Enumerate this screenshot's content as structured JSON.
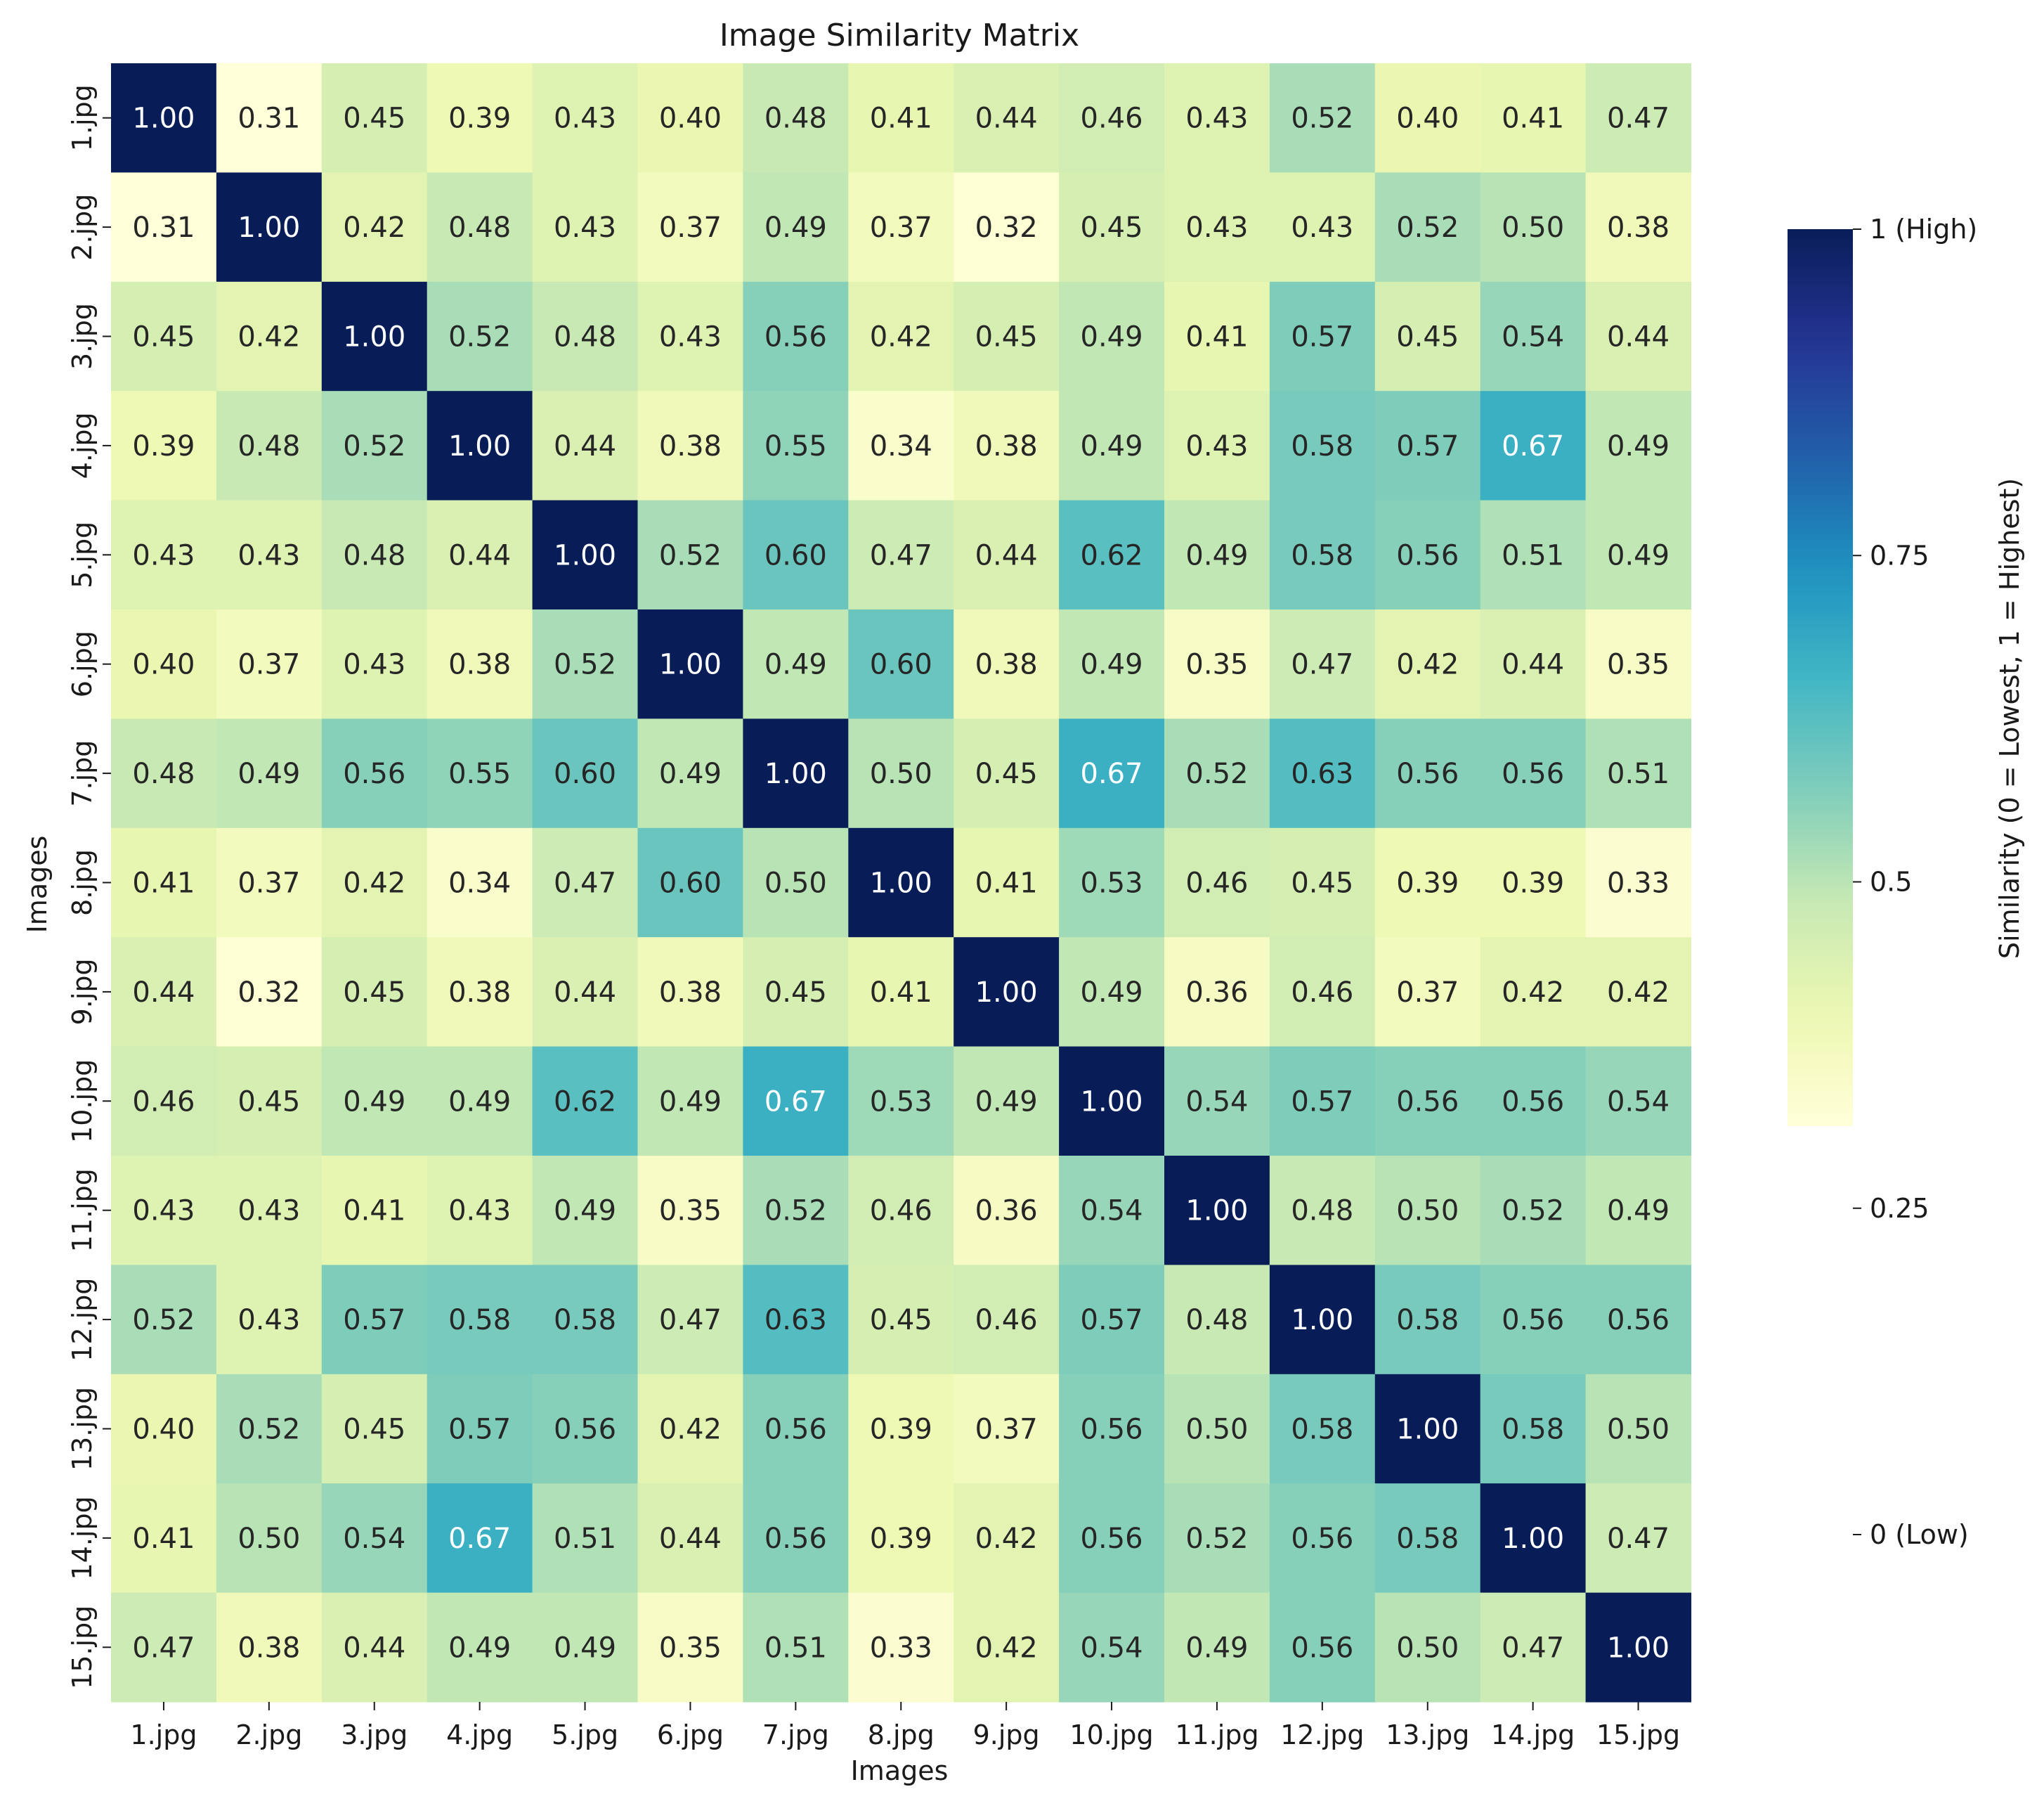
{
  "chart_data": {
    "type": "heatmap",
    "title": "Image Similarity Matrix",
    "xlabel": "Images",
    "ylabel": "Images",
    "x_categories": [
      "1.jpg",
      "2.jpg",
      "3.jpg",
      "4.jpg",
      "5.jpg",
      "6.jpg",
      "7.jpg",
      "8.jpg",
      "9.jpg",
      "10.jpg",
      "11.jpg",
      "12.jpg",
      "13.jpg",
      "14.jpg",
      "15.jpg"
    ],
    "y_categories": [
      "1.jpg",
      "2.jpg",
      "3.jpg",
      "4.jpg",
      "5.jpg",
      "6.jpg",
      "7.jpg",
      "8.jpg",
      "9.jpg",
      "10.jpg",
      "11.jpg",
      "12.jpg",
      "13.jpg",
      "14.jpg",
      "15.jpg"
    ],
    "values": [
      [
        1.0,
        0.31,
        0.45,
        0.39,
        0.43,
        0.4,
        0.48,
        0.41,
        0.44,
        0.46,
        0.43,
        0.52,
        0.4,
        0.41,
        0.47
      ],
      [
        0.31,
        1.0,
        0.42,
        0.48,
        0.43,
        0.37,
        0.49,
        0.37,
        0.32,
        0.45,
        0.43,
        0.43,
        0.52,
        0.5,
        0.38
      ],
      [
        0.45,
        0.42,
        1.0,
        0.52,
        0.48,
        0.43,
        0.56,
        0.42,
        0.45,
        0.49,
        0.41,
        0.57,
        0.45,
        0.54,
        0.44
      ],
      [
        0.39,
        0.48,
        0.52,
        1.0,
        0.44,
        0.38,
        0.55,
        0.34,
        0.38,
        0.49,
        0.43,
        0.58,
        0.57,
        0.67,
        0.49
      ],
      [
        0.43,
        0.43,
        0.48,
        0.44,
        1.0,
        0.52,
        0.6,
        0.47,
        0.44,
        0.62,
        0.49,
        0.58,
        0.56,
        0.51,
        0.49
      ],
      [
        0.4,
        0.37,
        0.43,
        0.38,
        0.52,
        1.0,
        0.49,
        0.6,
        0.38,
        0.49,
        0.35,
        0.47,
        0.42,
        0.44,
        0.35
      ],
      [
        0.48,
        0.49,
        0.56,
        0.55,
        0.6,
        0.49,
        1.0,
        0.5,
        0.45,
        0.67,
        0.52,
        0.63,
        0.56,
        0.56,
        0.51
      ],
      [
        0.41,
        0.37,
        0.42,
        0.34,
        0.47,
        0.6,
        0.5,
        1.0,
        0.41,
        0.53,
        0.46,
        0.45,
        0.39,
        0.39,
        0.33
      ],
      [
        0.44,
        0.32,
        0.45,
        0.38,
        0.44,
        0.38,
        0.45,
        0.41,
        1.0,
        0.49,
        0.36,
        0.46,
        0.37,
        0.42,
        0.42
      ],
      [
        0.46,
        0.45,
        0.49,
        0.49,
        0.62,
        0.49,
        0.67,
        0.53,
        0.49,
        1.0,
        0.54,
        0.57,
        0.56,
        0.56,
        0.54
      ],
      [
        0.43,
        0.43,
        0.41,
        0.43,
        0.49,
        0.35,
        0.52,
        0.46,
        0.36,
        0.54,
        1.0,
        0.48,
        0.5,
        0.52,
        0.49
      ],
      [
        0.52,
        0.43,
        0.57,
        0.58,
        0.58,
        0.47,
        0.63,
        0.45,
        0.46,
        0.57,
        0.48,
        1.0,
        0.58,
        0.56,
        0.56
      ],
      [
        0.4,
        0.52,
        0.45,
        0.57,
        0.56,
        0.42,
        0.56,
        0.39,
        0.37,
        0.56,
        0.5,
        0.58,
        1.0,
        0.58,
        0.5
      ],
      [
        0.41,
        0.5,
        0.54,
        0.67,
        0.51,
        0.44,
        0.56,
        0.39,
        0.42,
        0.56,
        0.52,
        0.56,
        0.58,
        1.0,
        0.47
      ],
      [
        0.47,
        0.38,
        0.44,
        0.49,
        0.49,
        0.35,
        0.51,
        0.33,
        0.42,
        0.54,
        0.49,
        0.56,
        0.5,
        0.47,
        1.0
      ]
    ],
    "value_format": "2 decimals",
    "colormap": "YlGnBu",
    "color_range": [
      0.31,
      1.0
    ],
    "colorbar": {
      "label": "Similarity (0 = Lowest, 1 = Highest)",
      "ticks": [
        1,
        0.75,
        0.5,
        0.25,
        0
      ],
      "tick_labels": [
        "1 (High)",
        "0.75",
        "0.5",
        "0.25",
        "0 (Low)"
      ],
      "axis_range": [
        0,
        1
      ]
    },
    "grid": false,
    "legend": "colorbar-right"
  }
}
